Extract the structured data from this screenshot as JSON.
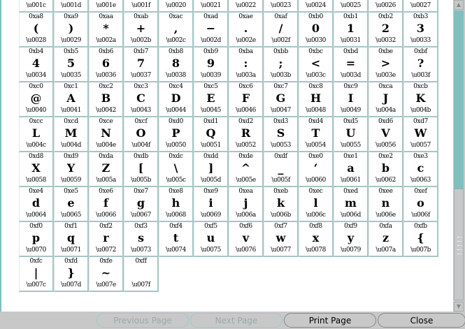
{
  "top_row": [
    "\\u001c",
    "\\u001d",
    "\\u001e",
    "\\u001f",
    "\\u0020",
    "\\u0021",
    "\\u0022",
    "\\u0023",
    "\\u0024",
    "\\u0025",
    "\\u0026",
    "\\u0027"
  ],
  "cells": [
    {
      "hex": "0xa8",
      "ch": "(",
      "u": "\\u0028"
    },
    {
      "hex": "0xa9",
      "ch": ")",
      "u": "\\u0029"
    },
    {
      "hex": "0xaa",
      "ch": "*",
      "u": "\\u002a"
    },
    {
      "hex": "0xab",
      "ch": "+",
      "u": "\\u002b"
    },
    {
      "hex": "0xac",
      "ch": ",",
      "u": "\\u002c"
    },
    {
      "hex": "0xad",
      "ch": "−",
      "u": "\\u002d"
    },
    {
      "hex": "0xae",
      "ch": ".",
      "u": "\\u002e"
    },
    {
      "hex": "0xaf",
      "ch": "/",
      "u": "\\u002f"
    },
    {
      "hex": "0xb0",
      "ch": "0",
      "u": "\\u0030"
    },
    {
      "hex": "0xb1",
      "ch": "1",
      "u": "\\u0031"
    },
    {
      "hex": "0xb2",
      "ch": "2",
      "u": "\\u0032"
    },
    {
      "hex": "0xb3",
      "ch": "3",
      "u": "\\u0033"
    },
    {
      "hex": "0xb4",
      "ch": "4",
      "u": "\\u0034"
    },
    {
      "hex": "0xb5",
      "ch": "5",
      "u": "\\u0035"
    },
    {
      "hex": "0xb6",
      "ch": "6",
      "u": "\\u0036"
    },
    {
      "hex": "0xb7",
      "ch": "7",
      "u": "\\u0037"
    },
    {
      "hex": "0xb8",
      "ch": "8",
      "u": "\\u0038"
    },
    {
      "hex": "0xb9",
      "ch": "9",
      "u": "\\u0039"
    },
    {
      "hex": "0xba",
      "ch": ":",
      "u": "\\u003a"
    },
    {
      "hex": "0xbb",
      "ch": ";",
      "u": "\\u003b"
    },
    {
      "hex": "0xbc",
      "ch": "<",
      "u": "\\u003c"
    },
    {
      "hex": "0xbd",
      "ch": "=",
      "u": "\\u003d"
    },
    {
      "hex": "0xbe",
      "ch": ">",
      "u": "\\u003e"
    },
    {
      "hex": "0xbf",
      "ch": "?",
      "u": "\\u003f"
    },
    {
      "hex": "0xc0",
      "ch": "@",
      "u": "\\u0040"
    },
    {
      "hex": "0xc1",
      "ch": "A",
      "u": "\\u0041"
    },
    {
      "hex": "0xc2",
      "ch": "B",
      "u": "\\u0042"
    },
    {
      "hex": "0xc3",
      "ch": "C",
      "u": "\\u0043"
    },
    {
      "hex": "0xc4",
      "ch": "D",
      "u": "\\u0044"
    },
    {
      "hex": "0xc5",
      "ch": "E",
      "u": "\\u0045"
    },
    {
      "hex": "0xc6",
      "ch": "F",
      "u": "\\u0046"
    },
    {
      "hex": "0xc7",
      "ch": "G",
      "u": "\\u0047"
    },
    {
      "hex": "0xc8",
      "ch": "H",
      "u": "\\u0048"
    },
    {
      "hex": "0xc9",
      "ch": "I",
      "u": "\\u0049"
    },
    {
      "hex": "0xca",
      "ch": "J",
      "u": "\\u004a"
    },
    {
      "hex": "0xcb",
      "ch": "K",
      "u": "\\u004b"
    },
    {
      "hex": "0xcc",
      "ch": "L",
      "u": "\\u004c"
    },
    {
      "hex": "0xcd",
      "ch": "M",
      "u": "\\u004d"
    },
    {
      "hex": "0xce",
      "ch": "N",
      "u": "\\u004e"
    },
    {
      "hex": "0xcf",
      "ch": "O",
      "u": "\\u004f"
    },
    {
      "hex": "0xd0",
      "ch": "P",
      "u": "\\u0050"
    },
    {
      "hex": "0xd1",
      "ch": "Q",
      "u": "\\u0051"
    },
    {
      "hex": "0xd2",
      "ch": "R",
      "u": "\\u0052"
    },
    {
      "hex": "0xd3",
      "ch": "S",
      "u": "\\u0053"
    },
    {
      "hex": "0xd4",
      "ch": "T",
      "u": "\\u0054"
    },
    {
      "hex": "0xd5",
      "ch": "U",
      "u": "\\u0055"
    },
    {
      "hex": "0xd6",
      "ch": "V",
      "u": "\\u0056"
    },
    {
      "hex": "0xd7",
      "ch": "W",
      "u": "\\u0057"
    },
    {
      "hex": "0xd8",
      "ch": "X",
      "u": "\\u0058"
    },
    {
      "hex": "0xd9",
      "ch": "Y",
      "u": "\\u0059"
    },
    {
      "hex": "0xda",
      "ch": "Z",
      "u": "\\u005a"
    },
    {
      "hex": "0xdb",
      "ch": "[",
      "u": "\\u005b"
    },
    {
      "hex": "0xdc",
      "ch": "\\",
      "u": "\\u005c"
    },
    {
      "hex": "0xdd",
      "ch": "]",
      "u": "\\u005d"
    },
    {
      "hex": "0xde",
      "ch": "^",
      "u": "\\u005e"
    },
    {
      "hex": "0xdf",
      "ch": "_",
      "u": "\\u005f"
    },
    {
      "hex": "0xe0",
      "ch": "‘",
      "u": "\\u0060"
    },
    {
      "hex": "0xe1",
      "ch": "a",
      "u": "\\u0061"
    },
    {
      "hex": "0xe2",
      "ch": "b",
      "u": "\\u0062"
    },
    {
      "hex": "0xe3",
      "ch": "c",
      "u": "\\u0063"
    },
    {
      "hex": "0xe4",
      "ch": "d",
      "u": "\\u0064"
    },
    {
      "hex": "0xe5",
      "ch": "e",
      "u": "\\u0065"
    },
    {
      "hex": "0xe6",
      "ch": "f",
      "u": "\\u0066"
    },
    {
      "hex": "0xe7",
      "ch": "g",
      "u": "\\u0067"
    },
    {
      "hex": "0xe8",
      "ch": "h",
      "u": "\\u0068"
    },
    {
      "hex": "0xe9",
      "ch": "i",
      "u": "\\u0069"
    },
    {
      "hex": "0xea",
      "ch": "j",
      "u": "\\u006a"
    },
    {
      "hex": "0xeb",
      "ch": "k",
      "u": "\\u006b"
    },
    {
      "hex": "0xec",
      "ch": "l",
      "u": "\\u006c"
    },
    {
      "hex": "0xed",
      "ch": "m",
      "u": "\\u006d"
    },
    {
      "hex": "0xee",
      "ch": "n",
      "u": "\\u006e"
    },
    {
      "hex": "0xef",
      "ch": "o",
      "u": "\\u006f"
    },
    {
      "hex": "0xf0",
      "ch": "p",
      "u": "\\u0070"
    },
    {
      "hex": "0xf1",
      "ch": "q",
      "u": "\\u0071"
    },
    {
      "hex": "0xf2",
      "ch": "r",
      "u": "\\u0072"
    },
    {
      "hex": "0xf3",
      "ch": "s",
      "u": "\\u0073"
    },
    {
      "hex": "0xf4",
      "ch": "t",
      "u": "\\u0074"
    },
    {
      "hex": "0xf5",
      "ch": "u",
      "u": "\\u0075"
    },
    {
      "hex": "0xf6",
      "ch": "v",
      "u": "\\u0076"
    },
    {
      "hex": "0xf7",
      "ch": "w",
      "u": "\\u0077"
    },
    {
      "hex": "0xf8",
      "ch": "x",
      "u": "\\u0078"
    },
    {
      "hex": "0xf9",
      "ch": "y",
      "u": "\\u0079"
    },
    {
      "hex": "0xfa",
      "ch": "z",
      "u": "\\u007a"
    },
    {
      "hex": "0xfb",
      "ch": "{",
      "u": "\\u007b"
    },
    {
      "hex": "0xfc",
      "ch": "|",
      "u": "\\u007c"
    },
    {
      "hex": "0xfd",
      "ch": "}",
      "u": "\\u007d"
    },
    {
      "hex": "0xfe",
      "ch": "~",
      "u": "\\u007e"
    },
    {
      "hex": "0xff",
      "ch": "",
      "u": "\\u007f"
    }
  ],
  "buttons": {
    "previous": {
      "label": "Previous Page",
      "enabled": false
    },
    "next": {
      "label": "Next Page",
      "enabled": false
    },
    "print": {
      "label": "Print Page",
      "enabled": true
    },
    "close": {
      "label": "Close",
      "enabled": true
    }
  },
  "scrollbar": {
    "position_fraction": 0.6
  },
  "colors": {
    "accent": "#7fbfbf",
    "background": "#c8c8c8",
    "grid_line": "#a8c4c4"
  }
}
